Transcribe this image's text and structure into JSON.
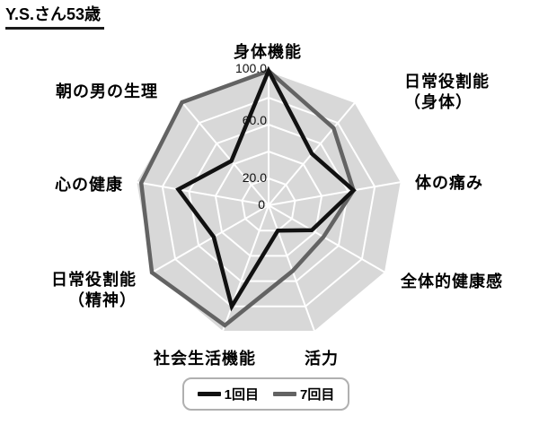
{
  "title": "Y.S.さん53歳",
  "chart_data": {
    "type": "radar",
    "title": "Y.S.さん53歳",
    "axis_range": [
      0,
      100
    ],
    "max": 100,
    "grid": true,
    "grid_interval": 20,
    "legend_position": "bottom",
    "fill_color": "#d8d8d8",
    "grid_color": "#ffffff",
    "tick_labels": [
      "100.0",
      "60.0",
      "20.0",
      "0"
    ],
    "tick_values": [
      100,
      60,
      20,
      0
    ],
    "categories": [
      {
        "label": "身体機能",
        "lines": [
          "身体機能"
        ]
      },
      {
        "label": "日常役割能（身体）",
        "lines": [
          "日常役割能",
          "（身体）"
        ]
      },
      {
        "label": "体の痛み",
        "lines": [
          "体の痛み"
        ]
      },
      {
        "label": "全体的健康感",
        "lines": [
          "全体的健康感"
        ]
      },
      {
        "label": "活力",
        "lines": [
          "活力"
        ]
      },
      {
        "label": "社会生活機能",
        "lines": [
          "社会生活機能"
        ]
      },
      {
        "label": "日常役割能（精神）",
        "lines": [
          "日常役割能",
          "（精神）"
        ]
      },
      {
        "label": "心の健康",
        "lines": [
          "心の健康"
        ]
      },
      {
        "label": "朝の男の生理",
        "lines": [
          "朝の男の生理"
        ]
      }
    ],
    "series": [
      {
        "name": "1回目",
        "color": "#111111",
        "values": [
          100,
          50,
          64,
          37,
          20,
          80,
          47,
          68,
          43
        ]
      },
      {
        "name": "7回目",
        "color": "#636363",
        "values": [
          100,
          75,
          64,
          47,
          52,
          95,
          100,
          96,
          100
        ]
      }
    ]
  }
}
